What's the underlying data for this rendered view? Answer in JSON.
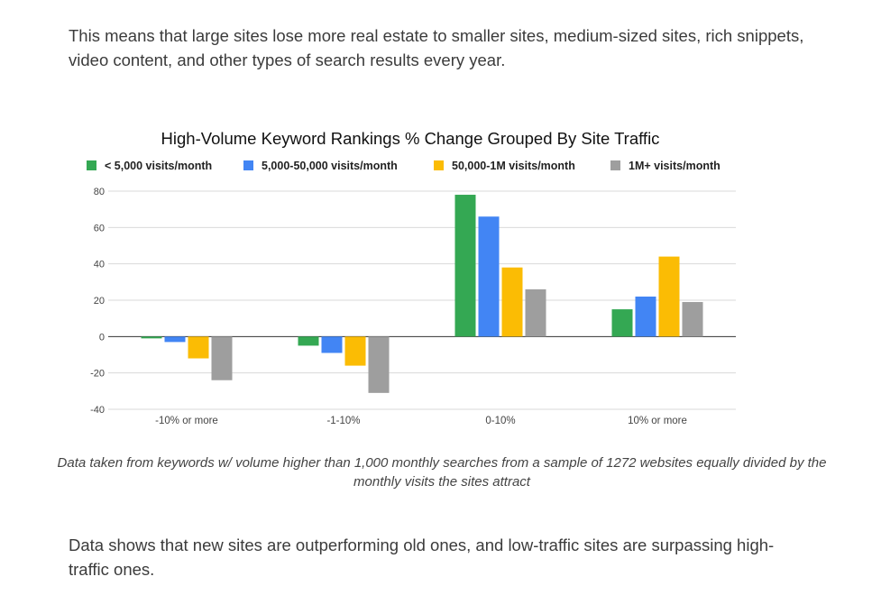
{
  "article": {
    "paragraph_top": "This means that large sites lose more real estate to smaller sites, medium-sized sites, rich snippets, video content, and other types of search results every year.",
    "caption": "Data taken from keywords w/ volume higher than 1,000 monthly searches from a sample of 1272 websites equally divided by the monthly visits the sites attract",
    "paragraph_bottom": "Data shows that new sites are outperforming old ones, and low-traffic sites are surpassing high-traffic ones."
  },
  "chart_data": {
    "type": "bar",
    "title": "High-Volume Keyword Rankings % Change Grouped By Site Traffic",
    "xlabel": "",
    "ylabel": "",
    "categories": [
      "-10% or more",
      "-1-10%",
      "0-10%",
      "10% or more"
    ],
    "series": [
      {
        "name": "< 5,000 visits/month",
        "color": "#34a853",
        "values": [
          -1,
          -5,
          78,
          15
        ]
      },
      {
        "name": "5,000-50,000 visits/month",
        "color": "#4285f4",
        "values": [
          -3,
          -9,
          66,
          22
        ]
      },
      {
        "name": "50,000-1M visits/month",
        "color": "#fbbc04",
        "values": [
          -12,
          -16,
          38,
          44
        ]
      },
      {
        "name": "1M+ visits/month",
        "color": "#9e9e9e",
        "values": [
          -24,
          -31,
          26,
          19
        ]
      }
    ],
    "ylim": [
      -40,
      80
    ],
    "yticks": [
      80,
      60,
      40,
      20,
      0,
      -20,
      -40
    ],
    "grid": true,
    "legend_position": "top"
  }
}
